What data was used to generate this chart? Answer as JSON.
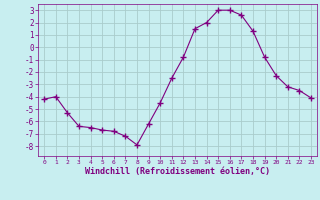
{
  "x": [
    0,
    1,
    2,
    3,
    4,
    5,
    6,
    7,
    8,
    9,
    10,
    11,
    12,
    13,
    14,
    15,
    16,
    17,
    18,
    19,
    20,
    21,
    22,
    23
  ],
  "y": [
    -4.2,
    -4.0,
    -5.3,
    -6.4,
    -6.5,
    -6.7,
    -6.8,
    -7.2,
    -7.9,
    -6.2,
    -4.5,
    -2.5,
    -0.8,
    1.5,
    2.0,
    3.0,
    3.0,
    2.6,
    1.3,
    -0.8,
    -2.3,
    -3.2,
    -3.5,
    -4.1
  ],
  "line_color": "#800080",
  "marker": "+",
  "marker_size": 4,
  "bg_color": "#c8eef0",
  "grid_color": "#aacccc",
  "xlabel": "Windchill (Refroidissement éolien,°C)",
  "xlabel_color": "#800080",
  "tick_color": "#800080",
  "label_color": "#800080",
  "ylim": [
    -8.8,
    3.5
  ],
  "yticks": [
    -8,
    -7,
    -6,
    -5,
    -4,
    -3,
    -2,
    -1,
    0,
    1,
    2,
    3
  ],
  "xticks": [
    0,
    1,
    2,
    3,
    4,
    5,
    6,
    7,
    8,
    9,
    10,
    11,
    12,
    13,
    14,
    15,
    16,
    17,
    18,
    19,
    20,
    21,
    22,
    23
  ],
  "xlim": [
    -0.5,
    23.5
  ]
}
